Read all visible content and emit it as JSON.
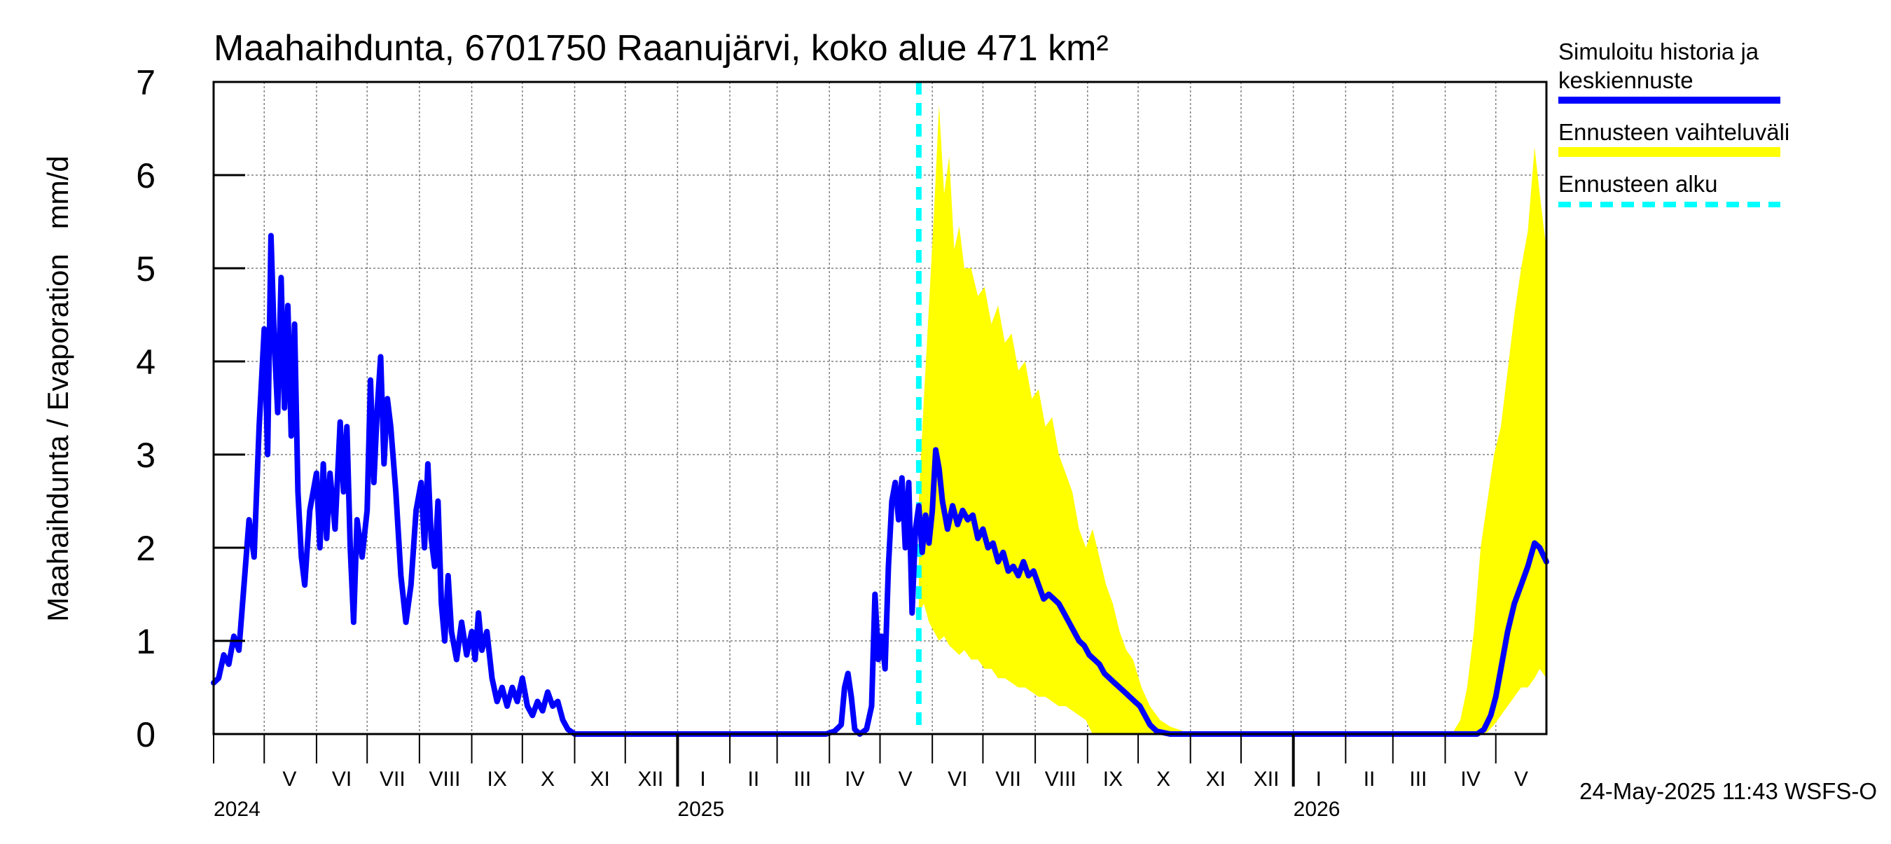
{
  "chart_data": {
    "type": "line",
    "title": "Maahaihdunta, 6701750 Raanujärvi, koko alue 471 km²",
    "ylabel": "Maahaihdunta / Evaporation   mm/d",
    "ylim": [
      0,
      7
    ],
    "yticks": [
      0,
      1,
      2,
      3,
      4,
      5,
      6,
      7
    ],
    "grid": true,
    "legend_position": "right",
    "x_range": [
      "2024-04-01",
      "2026-05-31"
    ],
    "month_labels": [
      {
        "label": "V",
        "date": "2024-05-16"
      },
      {
        "label": "VI",
        "date": "2024-06-16"
      },
      {
        "label": "VII",
        "date": "2024-07-16"
      },
      {
        "label": "VIII",
        "date": "2024-08-16"
      },
      {
        "label": "IX",
        "date": "2024-09-16"
      },
      {
        "label": "X",
        "date": "2024-10-16"
      },
      {
        "label": "XI",
        "date": "2024-11-16"
      },
      {
        "label": "XII",
        "date": "2024-12-16"
      },
      {
        "label": "I",
        "date": "2025-01-16"
      },
      {
        "label": "II",
        "date": "2025-02-15"
      },
      {
        "label": "III",
        "date": "2025-03-16"
      },
      {
        "label": "IV",
        "date": "2025-04-16"
      },
      {
        "label": "V",
        "date": "2025-05-16"
      },
      {
        "label": "VI",
        "date": "2025-06-16"
      },
      {
        "label": "VII",
        "date": "2025-07-16"
      },
      {
        "label": "VIII",
        "date": "2025-08-16"
      },
      {
        "label": "IX",
        "date": "2025-09-16"
      },
      {
        "label": "X",
        "date": "2025-10-16"
      },
      {
        "label": "XI",
        "date": "2025-11-16"
      },
      {
        "label": "XII",
        "date": "2025-12-16"
      },
      {
        "label": "I",
        "date": "2026-01-16"
      },
      {
        "label": "II",
        "date": "2026-02-15"
      },
      {
        "label": "III",
        "date": "2026-03-16"
      },
      {
        "label": "IV",
        "date": "2026-04-16"
      },
      {
        "label": "V",
        "date": "2026-05-16"
      }
    ],
    "year_labels": [
      {
        "label": "2024",
        "date": "2024-04-01"
      },
      {
        "label": "2025",
        "date": "2025-01-01"
      },
      {
        "label": "2026",
        "date": "2026-01-01"
      }
    ],
    "forecast_start": "2025-05-24",
    "series": [
      {
        "name": "Simuloitu historia ja keskiennuste",
        "color": "#0000ff",
        "points": [
          [
            "2024-04-01",
            0.55
          ],
          [
            "2024-04-04",
            0.6
          ],
          [
            "2024-04-07",
            0.85
          ],
          [
            "2024-04-10",
            0.75
          ],
          [
            "2024-04-13",
            1.05
          ],
          [
            "2024-04-16",
            0.9
          ],
          [
            "2024-04-19",
            1.6
          ],
          [
            "2024-04-22",
            2.3
          ],
          [
            "2024-04-25",
            1.9
          ],
          [
            "2024-04-28",
            3.3
          ],
          [
            "2024-05-01",
            4.35
          ],
          [
            "2024-05-03",
            3.0
          ],
          [
            "2024-05-05",
            5.35
          ],
          [
            "2024-05-07",
            4.2
          ],
          [
            "2024-05-09",
            3.45
          ],
          [
            "2024-05-11",
            4.9
          ],
          [
            "2024-05-13",
            3.5
          ],
          [
            "2024-05-15",
            4.6
          ],
          [
            "2024-05-17",
            3.2
          ],
          [
            "2024-05-19",
            4.4
          ],
          [
            "2024-05-21",
            2.6
          ],
          [
            "2024-05-23",
            1.9
          ],
          [
            "2024-05-25",
            1.6
          ],
          [
            "2024-05-28",
            2.4
          ],
          [
            "2024-06-01",
            2.8
          ],
          [
            "2024-06-03",
            2.0
          ],
          [
            "2024-06-05",
            2.9
          ],
          [
            "2024-06-07",
            2.1
          ],
          [
            "2024-06-09",
            2.8
          ],
          [
            "2024-06-12",
            2.2
          ],
          [
            "2024-06-15",
            3.35
          ],
          [
            "2024-06-17",
            2.6
          ],
          [
            "2024-06-19",
            3.3
          ],
          [
            "2024-06-21",
            2.0
          ],
          [
            "2024-06-23",
            1.2
          ],
          [
            "2024-06-25",
            2.3
          ],
          [
            "2024-06-28",
            1.9
          ],
          [
            "2024-07-01",
            2.4
          ],
          [
            "2024-07-03",
            3.8
          ],
          [
            "2024-07-05",
            2.7
          ],
          [
            "2024-07-07",
            3.5
          ],
          [
            "2024-07-09",
            4.05
          ],
          [
            "2024-07-11",
            2.9
          ],
          [
            "2024-07-13",
            3.6
          ],
          [
            "2024-07-15",
            3.3
          ],
          [
            "2024-07-18",
            2.6
          ],
          [
            "2024-07-21",
            1.7
          ],
          [
            "2024-07-24",
            1.2
          ],
          [
            "2024-07-27",
            1.6
          ],
          [
            "2024-07-30",
            2.4
          ],
          [
            "2024-08-02",
            2.7
          ],
          [
            "2024-08-04",
            2.0
          ],
          [
            "2024-08-06",
            2.9
          ],
          [
            "2024-08-08",
            2.1
          ],
          [
            "2024-08-10",
            1.8
          ],
          [
            "2024-08-12",
            2.5
          ],
          [
            "2024-08-14",
            1.4
          ],
          [
            "2024-08-16",
            1.0
          ],
          [
            "2024-08-18",
            1.7
          ],
          [
            "2024-08-20",
            1.1
          ],
          [
            "2024-08-23",
            0.8
          ],
          [
            "2024-08-26",
            1.2
          ],
          [
            "2024-08-29",
            0.85
          ],
          [
            "2024-09-01",
            1.1
          ],
          [
            "2024-09-03",
            0.8
          ],
          [
            "2024-09-05",
            1.3
          ],
          [
            "2024-09-07",
            0.9
          ],
          [
            "2024-09-10",
            1.1
          ],
          [
            "2024-09-13",
            0.6
          ],
          [
            "2024-09-16",
            0.35
          ],
          [
            "2024-09-19",
            0.5
          ],
          [
            "2024-09-22",
            0.3
          ],
          [
            "2024-09-25",
            0.5
          ],
          [
            "2024-09-28",
            0.35
          ],
          [
            "2024-10-01",
            0.6
          ],
          [
            "2024-10-04",
            0.3
          ],
          [
            "2024-10-07",
            0.2
          ],
          [
            "2024-10-10",
            0.35
          ],
          [
            "2024-10-13",
            0.25
          ],
          [
            "2024-10-16",
            0.45
          ],
          [
            "2024-10-19",
            0.3
          ],
          [
            "2024-10-22",
            0.35
          ],
          [
            "2024-10-25",
            0.15
          ],
          [
            "2024-10-28",
            0.05
          ],
          [
            "2024-11-01",
            0.0
          ],
          [
            "2025-03-30",
            0.0
          ],
          [
            "2025-04-04",
            0.03
          ],
          [
            "2025-04-08",
            0.1
          ],
          [
            "2025-04-10",
            0.5
          ],
          [
            "2025-04-12",
            0.65
          ],
          [
            "2025-04-14",
            0.4
          ],
          [
            "2025-04-16",
            0.05
          ],
          [
            "2025-04-19",
            0.0
          ],
          [
            "2025-04-23",
            0.05
          ],
          [
            "2025-04-26",
            0.3
          ],
          [
            "2025-04-28",
            1.5
          ],
          [
            "2025-04-30",
            0.8
          ],
          [
            "2025-05-02",
            1.05
          ],
          [
            "2025-05-04",
            0.7
          ],
          [
            "2025-05-06",
            1.8
          ],
          [
            "2025-05-08",
            2.5
          ],
          [
            "2025-05-10",
            2.7
          ],
          [
            "2025-05-12",
            2.3
          ],
          [
            "2025-05-14",
            2.75
          ],
          [
            "2025-05-16",
            2.0
          ],
          [
            "2025-05-18",
            2.7
          ],
          [
            "2025-05-20",
            1.3
          ],
          [
            "2025-05-22",
            2.2
          ],
          [
            "2025-05-24",
            2.45
          ],
          [
            "2025-05-26",
            1.95
          ],
          [
            "2025-05-28",
            2.35
          ],
          [
            "2025-05-30",
            2.05
          ],
          [
            "2025-06-01",
            2.4
          ],
          [
            "2025-06-03",
            3.05
          ],
          [
            "2025-06-05",
            2.85
          ],
          [
            "2025-06-07",
            2.5
          ],
          [
            "2025-06-10",
            2.2
          ],
          [
            "2025-06-13",
            2.45
          ],
          [
            "2025-06-16",
            2.25
          ],
          [
            "2025-06-19",
            2.4
          ],
          [
            "2025-06-22",
            2.3
          ],
          [
            "2025-06-25",
            2.35
          ],
          [
            "2025-06-28",
            2.1
          ],
          [
            "2025-07-01",
            2.2
          ],
          [
            "2025-07-04",
            2.0
          ],
          [
            "2025-07-07",
            2.05
          ],
          [
            "2025-07-10",
            1.85
          ],
          [
            "2025-07-13",
            1.95
          ],
          [
            "2025-07-16",
            1.75
          ],
          [
            "2025-07-19",
            1.8
          ],
          [
            "2025-07-22",
            1.7
          ],
          [
            "2025-07-25",
            1.85
          ],
          [
            "2025-07-28",
            1.7
          ],
          [
            "2025-07-31",
            1.75
          ],
          [
            "2025-08-03",
            1.6
          ],
          [
            "2025-08-06",
            1.45
          ],
          [
            "2025-08-09",
            1.5
          ],
          [
            "2025-08-12",
            1.45
          ],
          [
            "2025-08-15",
            1.4
          ],
          [
            "2025-08-18",
            1.3
          ],
          [
            "2025-08-21",
            1.2
          ],
          [
            "2025-08-24",
            1.1
          ],
          [
            "2025-08-27",
            1.0
          ],
          [
            "2025-08-30",
            0.95
          ],
          [
            "2025-09-02",
            0.85
          ],
          [
            "2025-09-05",
            0.8
          ],
          [
            "2025-09-08",
            0.75
          ],
          [
            "2025-09-11",
            0.65
          ],
          [
            "2025-09-14",
            0.6
          ],
          [
            "2025-09-17",
            0.55
          ],
          [
            "2025-09-20",
            0.5
          ],
          [
            "2025-09-23",
            0.45
          ],
          [
            "2025-09-26",
            0.4
          ],
          [
            "2025-09-29",
            0.35
          ],
          [
            "2025-10-02",
            0.3
          ],
          [
            "2025-10-05",
            0.2
          ],
          [
            "2025-10-08",
            0.1
          ],
          [
            "2025-10-12",
            0.03
          ],
          [
            "2025-10-20",
            0.0
          ],
          [
            "2026-04-20",
            0.0
          ],
          [
            "2026-04-24",
            0.05
          ],
          [
            "2026-04-28",
            0.2
          ],
          [
            "2026-05-01",
            0.4
          ],
          [
            "2026-05-04",
            0.7
          ],
          [
            "2026-05-08",
            1.1
          ],
          [
            "2026-05-12",
            1.4
          ],
          [
            "2026-05-16",
            1.6
          ],
          [
            "2026-05-20",
            1.8
          ],
          [
            "2026-05-24",
            2.05
          ],
          [
            "2026-05-27",
            2.0
          ],
          [
            "2026-05-31",
            1.85
          ]
        ]
      },
      {
        "name": "Ennusteen vaihteluväli",
        "color": "#ffff00",
        "band": [
          [
            "2025-05-24",
            1.3,
            2.5
          ],
          [
            "2025-05-27",
            1.4,
            3.6
          ],
          [
            "2025-05-30",
            1.2,
            4.6
          ],
          [
            "2025-06-02",
            1.1,
            5.6
          ],
          [
            "2025-06-05",
            1.0,
            6.75
          ],
          [
            "2025-06-08",
            1.05,
            5.8
          ],
          [
            "2025-06-11",
            0.95,
            6.2
          ],
          [
            "2025-06-14",
            0.9,
            5.2
          ],
          [
            "2025-06-17",
            0.85,
            5.45
          ],
          [
            "2025-06-20",
            0.9,
            5.0
          ],
          [
            "2025-06-24",
            0.8,
            5.0
          ],
          [
            "2025-06-28",
            0.8,
            4.7
          ],
          [
            "2025-07-02",
            0.7,
            4.8
          ],
          [
            "2025-07-06",
            0.7,
            4.4
          ],
          [
            "2025-07-10",
            0.6,
            4.6
          ],
          [
            "2025-07-14",
            0.6,
            4.2
          ],
          [
            "2025-07-18",
            0.55,
            4.3
          ],
          [
            "2025-07-22",
            0.5,
            3.9
          ],
          [
            "2025-07-26",
            0.5,
            4.0
          ],
          [
            "2025-07-30",
            0.45,
            3.6
          ],
          [
            "2025-08-03",
            0.4,
            3.7
          ],
          [
            "2025-08-07",
            0.4,
            3.3
          ],
          [
            "2025-08-11",
            0.35,
            3.4
          ],
          [
            "2025-08-15",
            0.3,
            3.0
          ],
          [
            "2025-08-19",
            0.3,
            2.8
          ],
          [
            "2025-08-23",
            0.25,
            2.6
          ],
          [
            "2025-08-27",
            0.2,
            2.2
          ],
          [
            "2025-08-31",
            0.15,
            2.0
          ],
          [
            "2025-09-04",
            0.0,
            2.2
          ],
          [
            "2025-09-08",
            0.0,
            1.9
          ],
          [
            "2025-09-12",
            0.0,
            1.6
          ],
          [
            "2025-09-16",
            0.0,
            1.4
          ],
          [
            "2025-09-20",
            0.0,
            1.1
          ],
          [
            "2025-09-24",
            0.0,
            0.9
          ],
          [
            "2025-09-28",
            0.0,
            0.8
          ],
          [
            "2025-10-03",
            0.0,
            0.5
          ],
          [
            "2025-10-08",
            0.0,
            0.3
          ],
          [
            "2025-10-14",
            0.0,
            0.15
          ],
          [
            "2025-10-20",
            0.0,
            0.08
          ],
          [
            "2025-10-28",
            0.0,
            0.03
          ],
          [
            "2025-11-05",
            0.0,
            0.0
          ],
          [
            "2026-04-05",
            0.0,
            0.0
          ],
          [
            "2026-04-10",
            0.0,
            0.15
          ],
          [
            "2026-04-14",
            0.0,
            0.5
          ],
          [
            "2026-04-18",
            0.0,
            1.1
          ],
          [
            "2026-04-22",
            0.0,
            2.0
          ],
          [
            "2026-04-26",
            0.02,
            2.5
          ],
          [
            "2026-04-30",
            0.1,
            3.0
          ],
          [
            "2026-05-04",
            0.2,
            3.3
          ],
          [
            "2026-05-08",
            0.3,
            3.9
          ],
          [
            "2026-05-12",
            0.4,
            4.5
          ],
          [
            "2026-05-16",
            0.5,
            5.0
          ],
          [
            "2026-05-20",
            0.5,
            5.4
          ],
          [
            "2026-05-24",
            0.6,
            6.3
          ],
          [
            "2026-05-27",
            0.7,
            5.8
          ],
          [
            "2026-05-31",
            0.6,
            5.2
          ]
        ]
      },
      {
        "name": "Ennusteen alku",
        "color": "#00ffff"
      }
    ],
    "legend": [
      {
        "label_line1": "Simuloitu historia ja",
        "label_line2": "keskiennuste",
        "style": "solid-blue"
      },
      {
        "label_line1": "Ennusteen vaihteluväli",
        "label_line2": "",
        "style": "solid-yellow"
      },
      {
        "label_line1": "Ennusteen alku",
        "label_line2": "",
        "style": "dashed-cyan"
      }
    ],
    "footer": "24-May-2025 11:43 WSFS-O"
  }
}
